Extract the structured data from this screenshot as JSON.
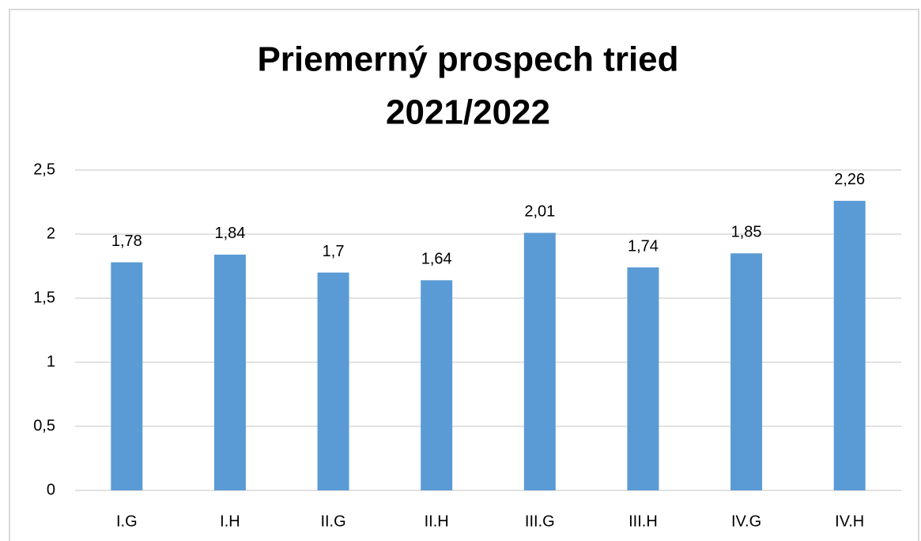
{
  "chart_data": {
    "type": "bar",
    "title": [
      "Priemerný prospech tried",
      "2021/2022"
    ],
    "categories": [
      "I.G",
      "I.H",
      "II.G",
      "II.H",
      "III.G",
      "III.H",
      "IV.G",
      "IV.H"
    ],
    "values": [
      1.78,
      1.84,
      1.7,
      1.64,
      2.01,
      1.74,
      1.85,
      2.26
    ],
    "value_labels": [
      "1,78",
      "1,84",
      "1,7",
      "1,64",
      "2,01",
      "1,74",
      "1,85",
      "2,26"
    ],
    "color": "#5b9bd5",
    "ylim": [
      0,
      2.5
    ],
    "yticks": [
      0,
      {
        "value": 0.5,
        "label": "0,5"
      },
      1,
      {
        "value": 1.5,
        "label": "1,5"
      },
      2,
      {
        "value": 2.5,
        "label": "2,5"
      }
    ],
    "grid": true
  }
}
